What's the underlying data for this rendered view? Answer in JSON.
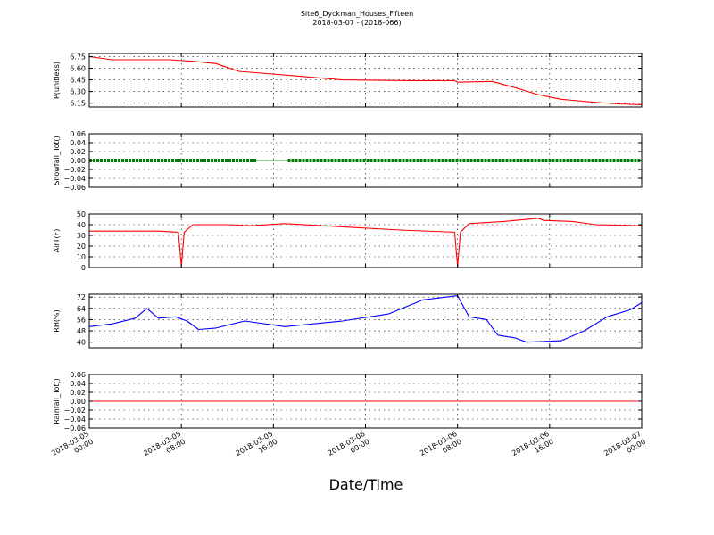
{
  "title": "Site6_Dyckman_Houses_Fifteen",
  "subtitle": "2018-03-07 - (2018-066)",
  "xlabel": "Date/Time",
  "chart_data": {
    "type": "line",
    "title": "Site6_Dyckman_Houses_Fifteen",
    "subtitle": "2018-03-07 - (2018-066)",
    "xlabel": "Date/Time",
    "xlim": [
      "2018-03-05 00:00",
      "2018-03-07 00:00"
    ],
    "x_ticks": [
      {
        "t": "2018-03-05 00:00",
        "label": [
          "2018-03-05",
          "00:00"
        ]
      },
      {
        "t": "2018-03-05 08:00",
        "label": [
          "2018-03-05",
          "08:00"
        ]
      },
      {
        "t": "2018-03-05 16:00",
        "label": [
          "2018-03-05",
          "16:00"
        ]
      },
      {
        "t": "2018-03-06 00:00",
        "label": [
          "2018-03-06",
          "00:00"
        ]
      },
      {
        "t": "2018-03-06 08:00",
        "label": [
          "2018-03-06",
          "08:00"
        ]
      },
      {
        "t": "2018-03-06 16:00",
        "label": [
          "2018-03-06",
          "16:00"
        ]
      },
      {
        "t": "2018-03-07 00:00",
        "label": [
          "2018-03-07",
          "00:00"
        ]
      }
    ],
    "grid": true,
    "panels": [
      {
        "ylabel": "P(unitless)",
        "ylim": [
          6.1,
          6.79
        ],
        "yticks": [
          6.15,
          6.3,
          6.45,
          6.6,
          6.75
        ],
        "tick_labels": [
          "6.15",
          "6.30",
          "6.45",
          "6.60",
          "6.75"
        ],
        "color": "#ff0000",
        "style": "line",
        "x": [
          "2018-03-05 00:00",
          "2018-03-05 02:00",
          "2018-03-05 07:00",
          "2018-03-05 09:00",
          "2018-03-05 11:00",
          "2018-03-05 13:00",
          "2018-03-05 18:00",
          "2018-03-05 22:00",
          "2018-03-06 04:00",
          "2018-03-06 07:45",
          "2018-03-06 08:00",
          "2018-03-06 11:00",
          "2018-03-06 13:00",
          "2018-03-06 15:00",
          "2018-03-06 17:00",
          "2018-03-06 20:00",
          "2018-03-06 22:00",
          "2018-03-07 00:00"
        ],
        "y": [
          6.75,
          6.71,
          6.71,
          6.69,
          6.66,
          6.56,
          6.5,
          6.45,
          6.44,
          6.44,
          6.42,
          6.43,
          6.35,
          6.26,
          6.2,
          6.16,
          6.14,
          6.13
        ]
      },
      {
        "ylabel": "Snowfall_Tot()",
        "ylim": [
          -0.06,
          0.06
        ],
        "yticks": [
          -0.06,
          -0.04,
          -0.02,
          0.0,
          0.02,
          0.04,
          0.06
        ],
        "tick_labels": [
          "−0.06",
          "−0.04",
          "−0.02",
          "0.00",
          "0.02",
          "0.04",
          "0.06"
        ],
        "color": "#008000",
        "style": "markers",
        "segments": [
          {
            "from": "2018-03-05 00:00",
            "to": "2018-03-05 14:30",
            "value": 0.0
          },
          {
            "from": "2018-03-05 17:15",
            "to": "2018-03-07 00:00",
            "value": 0.0
          }
        ]
      },
      {
        "ylabel": "AirT(F)",
        "ylim": [
          0,
          50
        ],
        "yticks": [
          0,
          10,
          20,
          30,
          40,
          50
        ],
        "tick_labels": [
          "0",
          "10",
          "20",
          "30",
          "40",
          "50"
        ],
        "color": "#ff0000",
        "style": "line",
        "x": [
          "2018-03-05 00:00",
          "2018-03-05 06:00",
          "2018-03-05 07:45",
          "2018-03-05 08:00",
          "2018-03-05 08:15",
          "2018-03-05 09:00",
          "2018-03-05 12:00",
          "2018-03-05 14:00",
          "2018-03-05 17:00",
          "2018-03-05 22:00",
          "2018-03-06 03:00",
          "2018-03-06 07:45",
          "2018-03-06 08:00",
          "2018-03-06 08:15",
          "2018-03-06 09:00",
          "2018-03-06 12:00",
          "2018-03-06 15:00",
          "2018-03-06 15:30",
          "2018-03-06 18:00",
          "2018-03-06 20:00",
          "2018-03-07 00:00"
        ],
        "y": [
          34,
          34,
          33,
          1,
          33,
          40,
          40,
          39,
          41,
          38,
          35,
          33,
          1,
          33,
          41,
          43,
          46,
          44,
          43,
          40,
          39
        ]
      },
      {
        "ylabel": "RH(%)",
        "ylim": [
          36,
          74
        ],
        "yticks": [
          40,
          48,
          56,
          64,
          72
        ],
        "tick_labels": [
          "40",
          "48",
          "56",
          "64",
          "72"
        ],
        "color": "#0000ff",
        "style": "line",
        "x": [
          "2018-03-05 00:00",
          "2018-03-05 02:00",
          "2018-03-05 04:00",
          "2018-03-05 05:00",
          "2018-03-05 06:00",
          "2018-03-05 07:30",
          "2018-03-05 08:30",
          "2018-03-05 09:30",
          "2018-03-05 11:00",
          "2018-03-05 13:30",
          "2018-03-05 17:00",
          "2018-03-05 22:00",
          "2018-03-06 02:00",
          "2018-03-06 05:00",
          "2018-03-06 08:00",
          "2018-03-06 09:00",
          "2018-03-06 10:30",
          "2018-03-06 11:30",
          "2018-03-06 13:00",
          "2018-03-06 14:00",
          "2018-03-06 17:00",
          "2018-03-06 19:00",
          "2018-03-06 21:00",
          "2018-03-06 23:00",
          "2018-03-07 00:00"
        ],
        "y": [
          51,
          53,
          57,
          64,
          57,
          58,
          55,
          49,
          50,
          55,
          51,
          55,
          60,
          70,
          73,
          58,
          56,
          45,
          43,
          40,
          41,
          48,
          58,
          63,
          68
        ]
      },
      {
        "ylabel": "Rainfall_Tot()",
        "ylim": [
          -0.06,
          0.06
        ],
        "yticks": [
          -0.06,
          -0.04,
          -0.02,
          0.0,
          0.02,
          0.04,
          0.06
        ],
        "tick_labels": [
          "−0.06",
          "−0.04",
          "−0.02",
          "0.00",
          "0.02",
          "0.04",
          "0.06"
        ],
        "color": "#ff0000",
        "style": "line",
        "x": [
          "2018-03-05 00:00",
          "2018-03-07 00:00"
        ],
        "y": [
          0.0,
          0.0
        ]
      }
    ]
  }
}
